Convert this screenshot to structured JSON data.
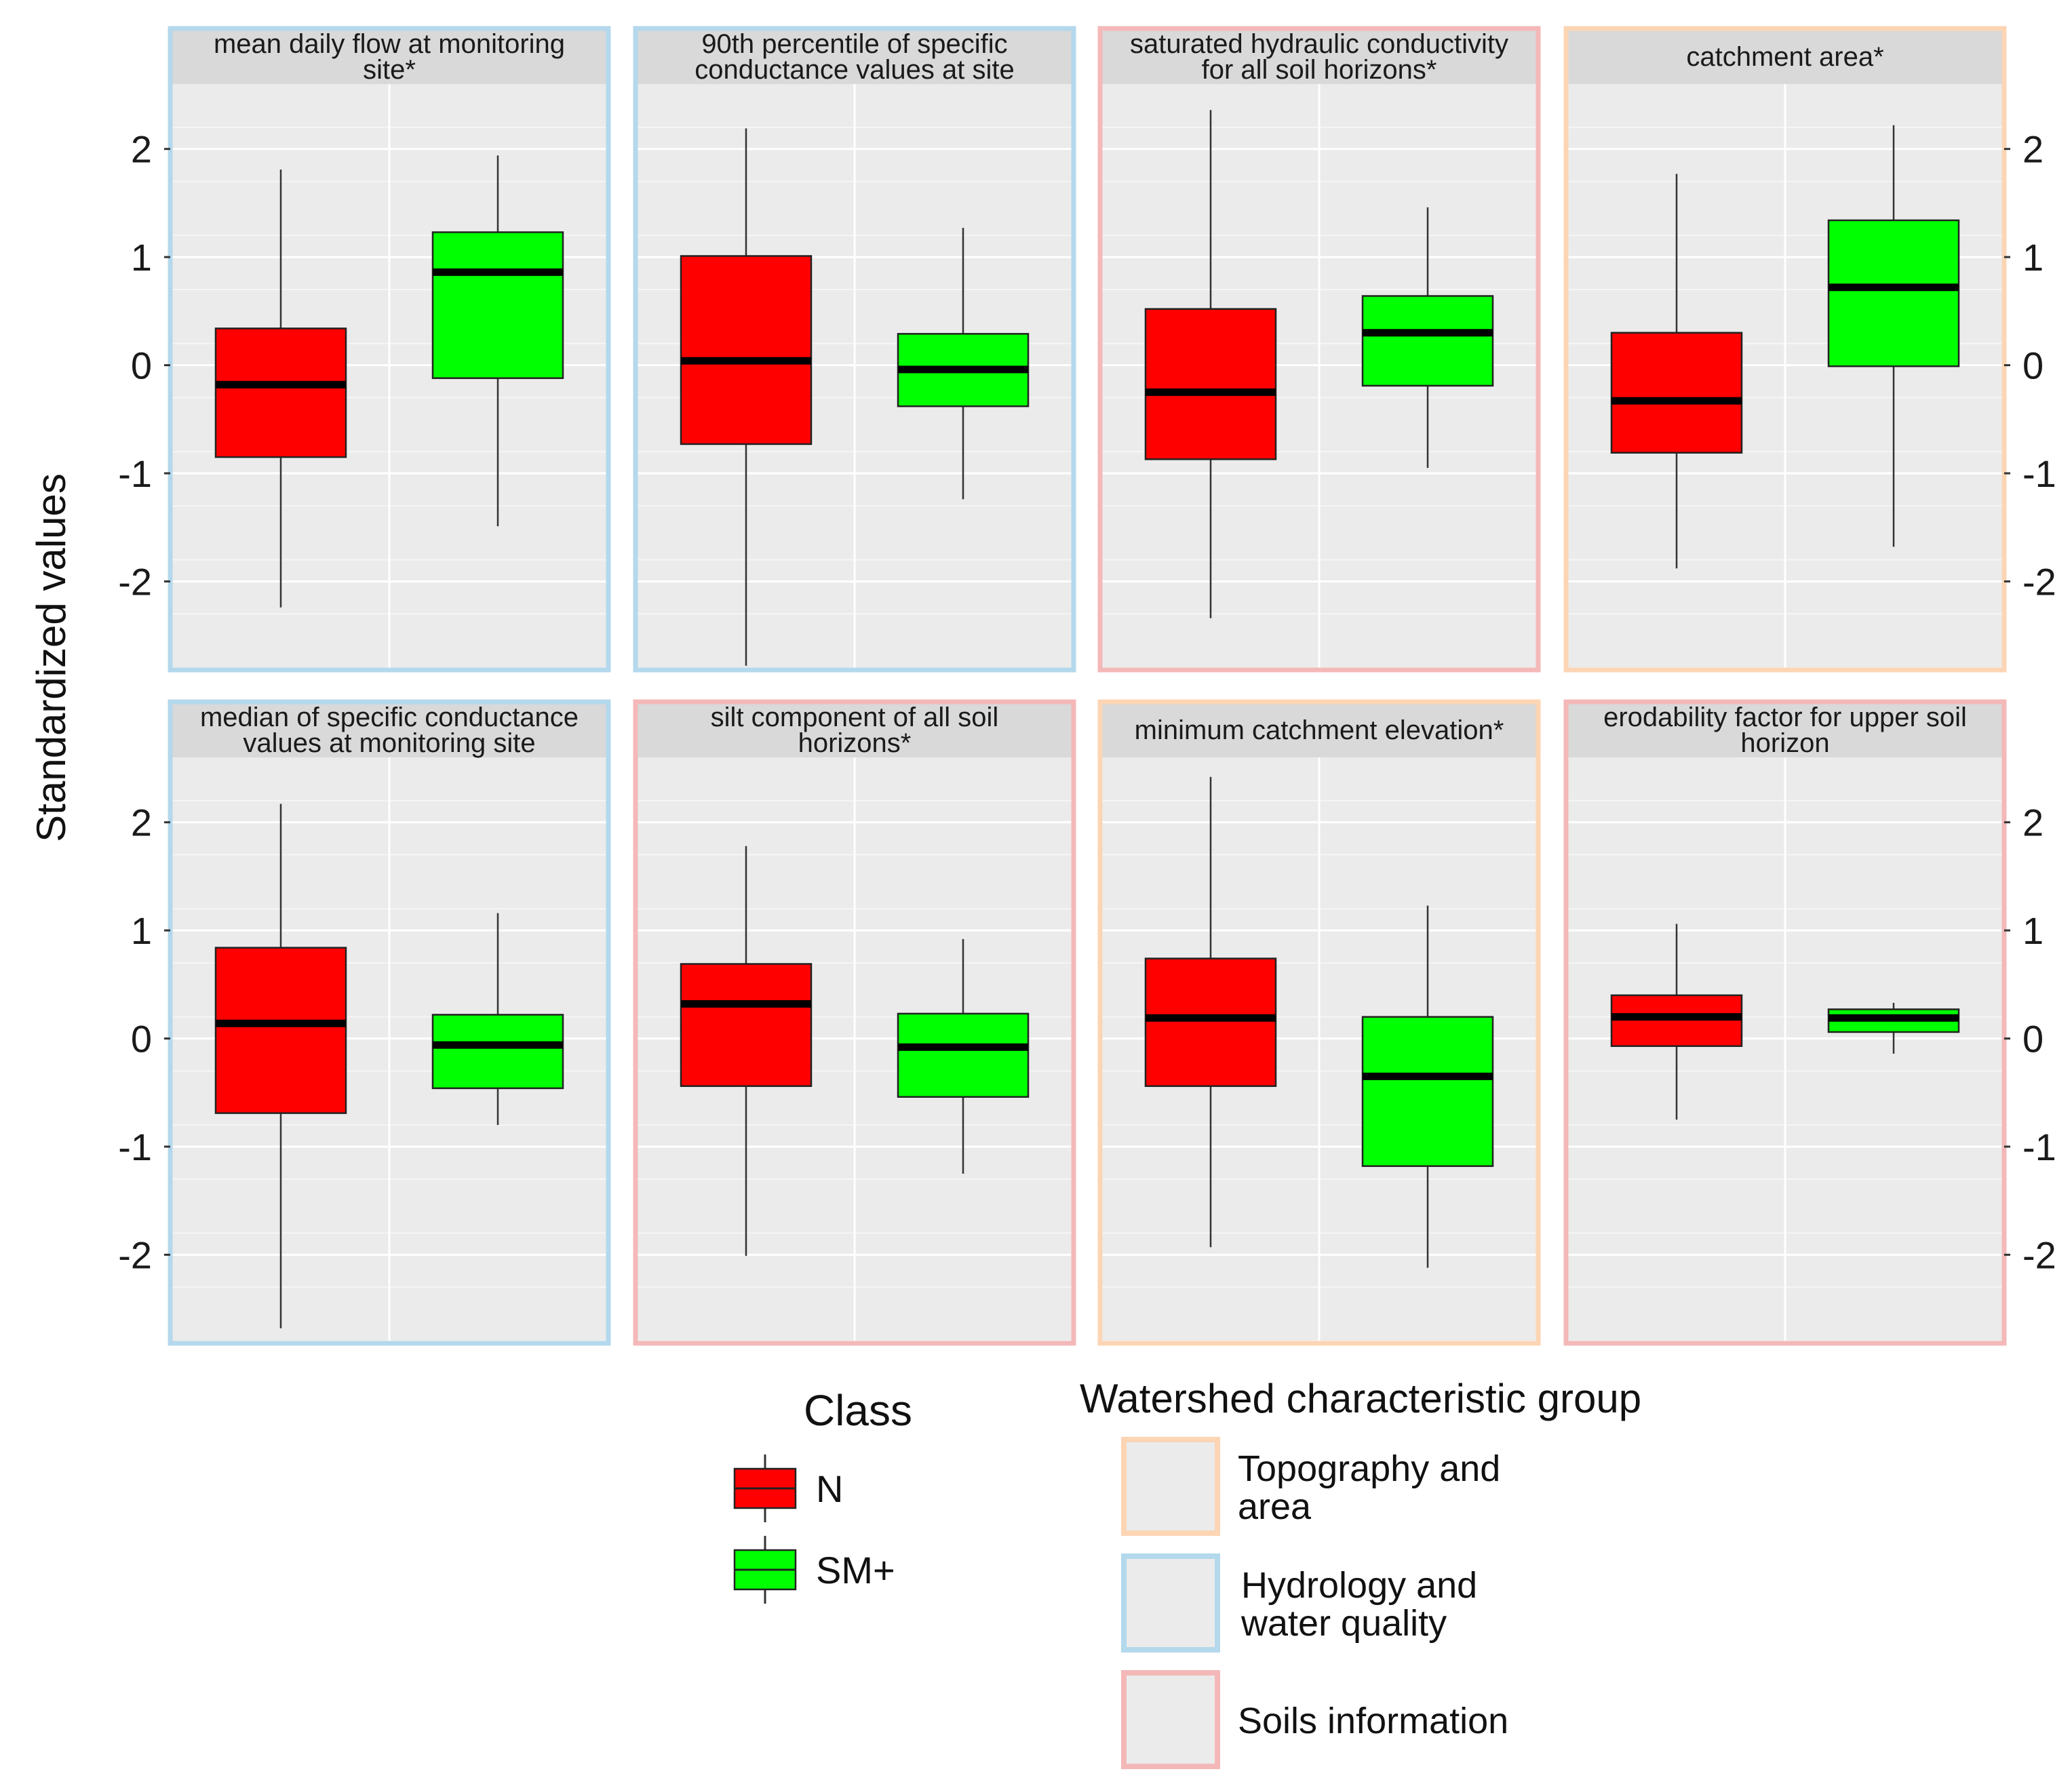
{
  "chart_data": {
    "type": "boxplot",
    "y_label": "Standardized values",
    "ylim": [
      -2.8,
      2.6
    ],
    "y_ticks": [
      -2,
      -1,
      0,
      1,
      2
    ],
    "y_tick_labels": [
      "-2",
      "-1",
      "0",
      "1",
      "2"
    ],
    "classes": [
      {
        "name": "N",
        "color": "#ff0000"
      },
      {
        "name": "SM+",
        "color": "#00ff00"
      }
    ],
    "groups": [
      {
        "key": "topo",
        "name": "Topography and area",
        "name_lines": [
          "Topography and",
          "area"
        ],
        "color": "#fcd5b5"
      },
      {
        "key": "hydro",
        "name": "Hydrology and water quality",
        "name_lines": [
          "Hydrology and",
          "water quality"
        ],
        "color": "#b4d8ec"
      },
      {
        "key": "soils",
        "name": "Soils information",
        "name_lines": [
          "Soils information"
        ],
        "color": "#f4b8b8"
      }
    ],
    "panels": [
      {
        "title": "mean daily flow at monitoring site*",
        "title_lines": [
          "mean daily flow at monitoring",
          "site*"
        ],
        "group": "hydro",
        "boxes": [
          {
            "class": "N",
            "min": -2.24,
            "q1": -0.85,
            "median": -0.18,
            "q3": 0.34,
            "max": 1.81
          },
          {
            "class": "SM+",
            "min": -1.49,
            "q1": -0.12,
            "median": 0.86,
            "q3": 1.23,
            "max": 1.94
          }
        ]
      },
      {
        "title": "90th percentile of specific conductance values at site",
        "title_lines": [
          "90th percentile of specific",
          "conductance values at site"
        ],
        "group": "hydro",
        "boxes": [
          {
            "class": "N",
            "min": -2.78,
            "q1": -0.73,
            "median": 0.04,
            "q3": 1.01,
            "max": 2.19
          },
          {
            "class": "SM+",
            "min": -1.24,
            "q1": -0.38,
            "median": -0.04,
            "q3": 0.29,
            "max": 1.27
          }
        ]
      },
      {
        "title": "saturated hydraulic conductivity for all soil horizons*",
        "title_lines": [
          "saturated hydraulic conductivity",
          "for all soil horizons*"
        ],
        "group": "soils",
        "boxes": [
          {
            "class": "N",
            "min": -2.34,
            "q1": -0.87,
            "median": -0.25,
            "q3": 0.52,
            "max": 2.36
          },
          {
            "class": "SM+",
            "min": -0.95,
            "q1": -0.19,
            "median": 0.3,
            "q3": 0.64,
            "max": 1.46
          }
        ]
      },
      {
        "title": "catchment area*",
        "title_lines": [
          "catchment area*"
        ],
        "group": "topo",
        "boxes": [
          {
            "class": "N",
            "min": -1.88,
            "q1": -0.81,
            "median": -0.33,
            "q3": 0.3,
            "max": 1.77
          },
          {
            "class": "SM+",
            "min": -1.68,
            "q1": -0.01,
            "median": 0.72,
            "q3": 1.34,
            "max": 2.22
          }
        ]
      },
      {
        "title": "median of specific conductance values at monitoring site",
        "title_lines": [
          "median of specific conductance",
          "values at monitoring site"
        ],
        "group": "hydro",
        "boxes": [
          {
            "class": "N",
            "min": -2.68,
            "q1": -0.69,
            "median": 0.14,
            "q3": 0.84,
            "max": 2.17
          },
          {
            "class": "SM+",
            "min": -0.8,
            "q1": -0.46,
            "median": -0.06,
            "q3": 0.22,
            "max": 1.16
          }
        ]
      },
      {
        "title": "silt component of all soil horizons*",
        "title_lines": [
          "silt component of all soil",
          "horizons*"
        ],
        "group": "soils",
        "boxes": [
          {
            "class": "N",
            "min": -2.01,
            "q1": -0.44,
            "median": 0.32,
            "q3": 0.69,
            "max": 1.78
          },
          {
            "class": "SM+",
            "min": -1.25,
            "q1": -0.54,
            "median": -0.08,
            "q3": 0.23,
            "max": 0.92
          }
        ]
      },
      {
        "title": "minimum catchment elevation*",
        "title_lines": [
          "minimum catchment elevation*"
        ],
        "group": "topo",
        "boxes": [
          {
            "class": "N",
            "min": -1.93,
            "q1": -0.44,
            "median": 0.19,
            "q3": 0.74,
            "max": 2.42
          },
          {
            "class": "SM+",
            "min": -2.12,
            "q1": -1.18,
            "median": -0.35,
            "q3": 0.2,
            "max": 1.23
          }
        ]
      },
      {
        "title": "erodability factor for upper soil horizon",
        "title_lines": [
          "erodability factor for upper soil",
          "horizon"
        ],
        "group": "soils",
        "boxes": [
          {
            "class": "N",
            "min": -0.75,
            "q1": -0.07,
            "median": 0.2,
            "q3": 0.4,
            "max": 1.06
          },
          {
            "class": "SM+",
            "min": -0.14,
            "q1": 0.06,
            "median": 0.19,
            "q3": 0.27,
            "max": 0.33
          }
        ]
      }
    ]
  },
  "legend": {
    "class_title": "Class",
    "group_title": "Watershed characteristic group"
  }
}
